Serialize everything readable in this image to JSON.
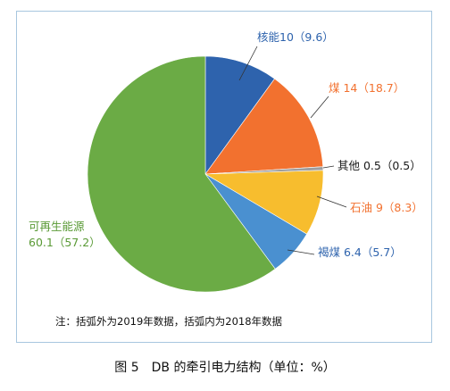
{
  "chart_data": {
    "type": "pie",
    "series": [
      {
        "label": "核能10（9.6）",
        "value": 10,
        "value_2018": 9.6,
        "color": "#2e63ad"
      },
      {
        "label": "煤 14（18.7）",
        "value": 14,
        "value_2018": 18.7,
        "color": "#f2712f"
      },
      {
        "label": "其他 0.5（0.5）",
        "value": 0.5,
        "value_2018": 0.5,
        "color": "#9e9e9e"
      },
      {
        "label": "石油 9（8.3）",
        "value": 9,
        "value_2018": 8.3,
        "color": "#f7bd2e"
      },
      {
        "label": "褐煤 6.4（5.7）",
        "value": 6.4,
        "value_2018": 5.7,
        "color": "#4a90d0"
      },
      {
        "label_lines": [
          "可再生能源",
          "60.1（57.2）"
        ],
        "value": 60.1,
        "value_2018": 57.2,
        "color": "#6bab45"
      }
    ],
    "label_colors": [
      "#2e63ad",
      "#f2712f",
      "#1a1a1a",
      "#f2712f",
      "#2e63ad",
      "#5a9a36"
    ],
    "start_angle": "12 o'clock",
    "direction": "clockwise",
    "legend": "none",
    "title": ""
  },
  "note": "注：括弧外为2019年数据，括弧内为2018年数据",
  "caption": "图 5　DB 的牵引电力结构（单位：%）"
}
